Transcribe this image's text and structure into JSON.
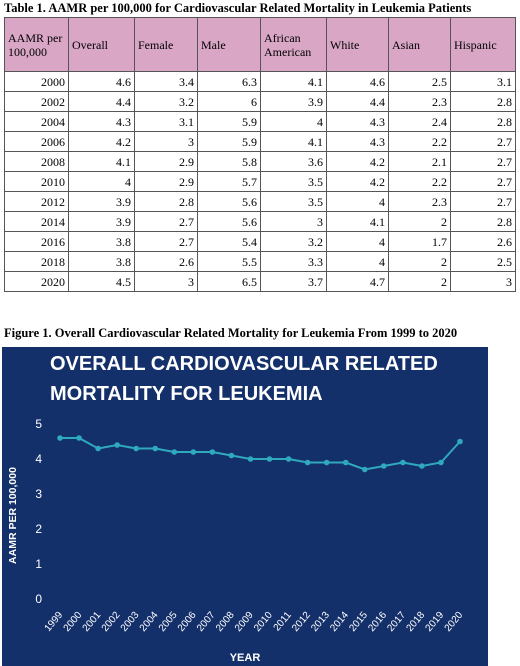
{
  "table": {
    "caption": "Table 1. AAMR per 100,000 for Cardiovascular Related Mortality in Leukemia Patients",
    "headers": [
      "AAMR per 100,000",
      "Overall",
      "Female",
      "Male",
      "African American",
      "White",
      "Asian",
      "Hispanic"
    ],
    "rows": [
      [
        "2000",
        "4.6",
        "3.4",
        "6.3",
        "4.1",
        "4.6",
        "2.5",
        "3.1"
      ],
      [
        "2002",
        "4.4",
        "3.2",
        "6",
        "3.9",
        "4.4",
        "2.3",
        "2.8"
      ],
      [
        "2004",
        "4.3",
        "3.1",
        "5.9",
        "4",
        "4.3",
        "2.4",
        "2.8"
      ],
      [
        "2006",
        "4.2",
        "3",
        "5.9",
        "4.1",
        "4.3",
        "2.2",
        "2.7"
      ],
      [
        "2008",
        "4.1",
        "2.9",
        "5.8",
        "3.6",
        "4.2",
        "2.1",
        "2.7"
      ],
      [
        "2010",
        "4",
        "2.9",
        "5.7",
        "3.5",
        "4.2",
        "2.2",
        "2.7"
      ],
      [
        "2012",
        "3.9",
        "2.8",
        "5.6",
        "3.5",
        "4",
        "2.3",
        "2.7"
      ],
      [
        "2014",
        "3.9",
        "2.7",
        "5.6",
        "3",
        "4.1",
        "2",
        "2.8"
      ],
      [
        "2016",
        "3.8",
        "2.7",
        "5.4",
        "3.2",
        "4",
        "1.7",
        "2.6"
      ],
      [
        "2018",
        "3.8",
        "2.6",
        "5.5",
        "3.3",
        "4",
        "2",
        "2.5"
      ],
      [
        "2020",
        "4.5",
        "3",
        "6.5",
        "3.7",
        "4.7",
        "2",
        "3"
      ]
    ]
  },
  "figure_caption": "Figure 1. Overall Cardiovascular Related Mortality for Leukemia From 1999 to 2020",
  "colors": {
    "header_bg": "#d9a6c6",
    "chart_bg": "#14306b",
    "line": "#2fa9be",
    "text": "#ffffff"
  },
  "chart_data": {
    "type": "line",
    "title_lines": [
      "OVERALL CARDIOVASCULAR RELATED",
      "MORTALITY FOR LEUKEMIA"
    ],
    "xlabel": "YEAR",
    "ylabel": "AAMR PER 100,000",
    "ylim": [
      0,
      5
    ],
    "yticks": [
      "0",
      "1",
      "2",
      "3",
      "4",
      "5"
    ],
    "x": [
      "1999",
      "2000",
      "2001",
      "2002",
      "2003",
      "2004",
      "2005",
      "2006",
      "2007",
      "2008",
      "2009",
      "2010",
      "2011",
      "2012",
      "2013",
      "2014",
      "2015",
      "2016",
      "2017",
      "2018",
      "2019",
      "2020"
    ],
    "values": [
      4.6,
      4.6,
      4.3,
      4.4,
      4.3,
      4.3,
      4.2,
      4.2,
      4.2,
      4.1,
      4.0,
      4.0,
      4.0,
      3.9,
      3.9,
      3.9,
      3.7,
      3.8,
      3.9,
      3.8,
      3.9,
      4.5
    ],
    "grid": false,
    "legend": "none"
  }
}
